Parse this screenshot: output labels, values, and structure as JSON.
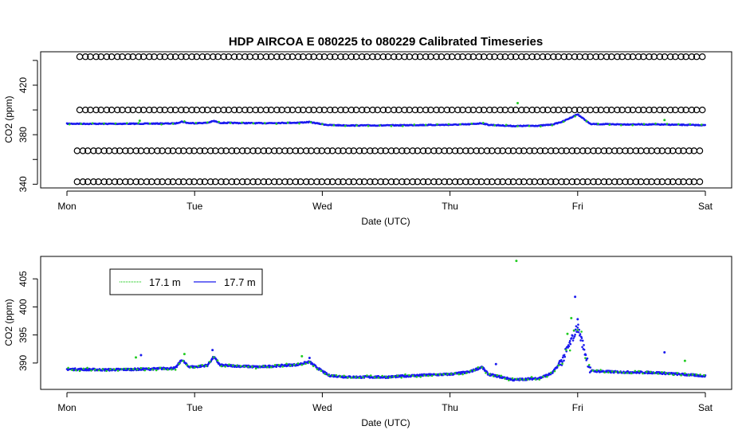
{
  "title": "HDP   AIRCOA  E    080225  to  080229   Calibrated Timeseries",
  "colors": {
    "s17_1": "#22cc22",
    "s17_7": "#1a1aee",
    "calib": "#000000"
  },
  "chart_data": [
    {
      "type": "scatter",
      "xlabel": "Date (UTC)",
      "ylabel": "CO2 (ppm)",
      "x_ticks": [
        "Mon",
        "Tue",
        "Wed",
        "Thu",
        "Fri",
        "Sat"
      ],
      "xlim": [
        0,
        5
      ],
      "ylim": [
        337,
        447
      ],
      "y_ticks": [
        340,
        380,
        420
      ],
      "y_minor_ticks": [
        360,
        400,
        440
      ],
      "calibration_levels": [
        342,
        367,
        400,
        443
      ],
      "calibration_first_day": 0.08,
      "calibration_step_days": 0.0833,
      "series": [
        {
          "name": "17.1 m",
          "color": "#22cc22",
          "outliers": [
            [
              0.57,
              391.3
            ],
            [
              3.53,
              405.5
            ],
            [
              4.68,
              391.8
            ]
          ]
        },
        {
          "name": "17.7 m",
          "color": "#1a1aee",
          "outliers": []
        }
      ]
    },
    {
      "type": "scatter",
      "xlabel": "Date (UTC)",
      "ylabel": "CO2 (ppm)",
      "x_ticks": [
        "Mon",
        "Tue",
        "Wed",
        "Thu",
        "Fri",
        "Sat"
      ],
      "xlim": [
        0,
        5
      ],
      "ylim": [
        385.3,
        409
      ],
      "y_ticks": [
        390,
        395,
        400,
        405
      ],
      "legend": [
        {
          "label": "17.1 m",
          "color": "#22cc22"
        },
        {
          "label": "17.7 m",
          "color": "#1a1aee"
        }
      ],
      "legend_position": "top-left",
      "baseline": [
        [
          0.0,
          388.9
        ],
        [
          0.3,
          388.8
        ],
        [
          0.6,
          388.9
        ],
        [
          0.85,
          389.1
        ],
        [
          0.9,
          390.6
        ],
        [
          0.95,
          389.4
        ],
        [
          1.0,
          389.3
        ],
        [
          1.1,
          389.6
        ],
        [
          1.15,
          391.1
        ],
        [
          1.2,
          389.6
        ],
        [
          1.5,
          389.3
        ],
        [
          1.65,
          389.5
        ],
        [
          1.8,
          389.7
        ],
        [
          1.9,
          390.2
        ],
        [
          1.97,
          389.0
        ],
        [
          2.05,
          387.8
        ],
        [
          2.2,
          387.5
        ],
        [
          2.5,
          387.5
        ],
        [
          2.75,
          387.8
        ],
        [
          3.0,
          388.0
        ],
        [
          3.15,
          388.4
        ],
        [
          3.25,
          389.3
        ],
        [
          3.3,
          388.0
        ],
        [
          3.4,
          387.5
        ],
        [
          3.5,
          387.0
        ],
        [
          3.7,
          387.3
        ],
        [
          3.8,
          388.2
        ],
        [
          3.88,
          390.5
        ],
        [
          3.95,
          394.0
        ],
        [
          4.0,
          396.5
        ],
        [
          4.05,
          392.5
        ],
        [
          4.1,
          388.6
        ],
        [
          4.3,
          388.4
        ],
        [
          4.6,
          388.3
        ],
        [
          4.8,
          388.0
        ],
        [
          5.0,
          387.7
        ]
      ],
      "spikes": [
        [
          0.92,
          391.6
        ],
        [
          1.14,
          392.3
        ],
        [
          1.84,
          391.2
        ],
        [
          1.9,
          390.9
        ],
        [
          3.52,
          408.2
        ],
        [
          3.98,
          401.8
        ],
        [
          3.95,
          398.0
        ],
        [
          4.0,
          397.8
        ],
        [
          3.92,
          395.2
        ],
        [
          4.68,
          391.9
        ],
        [
          4.84,
          390.4
        ],
        [
          0.58,
          391.4
        ],
        [
          0.54,
          391.0
        ],
        [
          3.36,
          389.8
        ]
      ]
    }
  ]
}
